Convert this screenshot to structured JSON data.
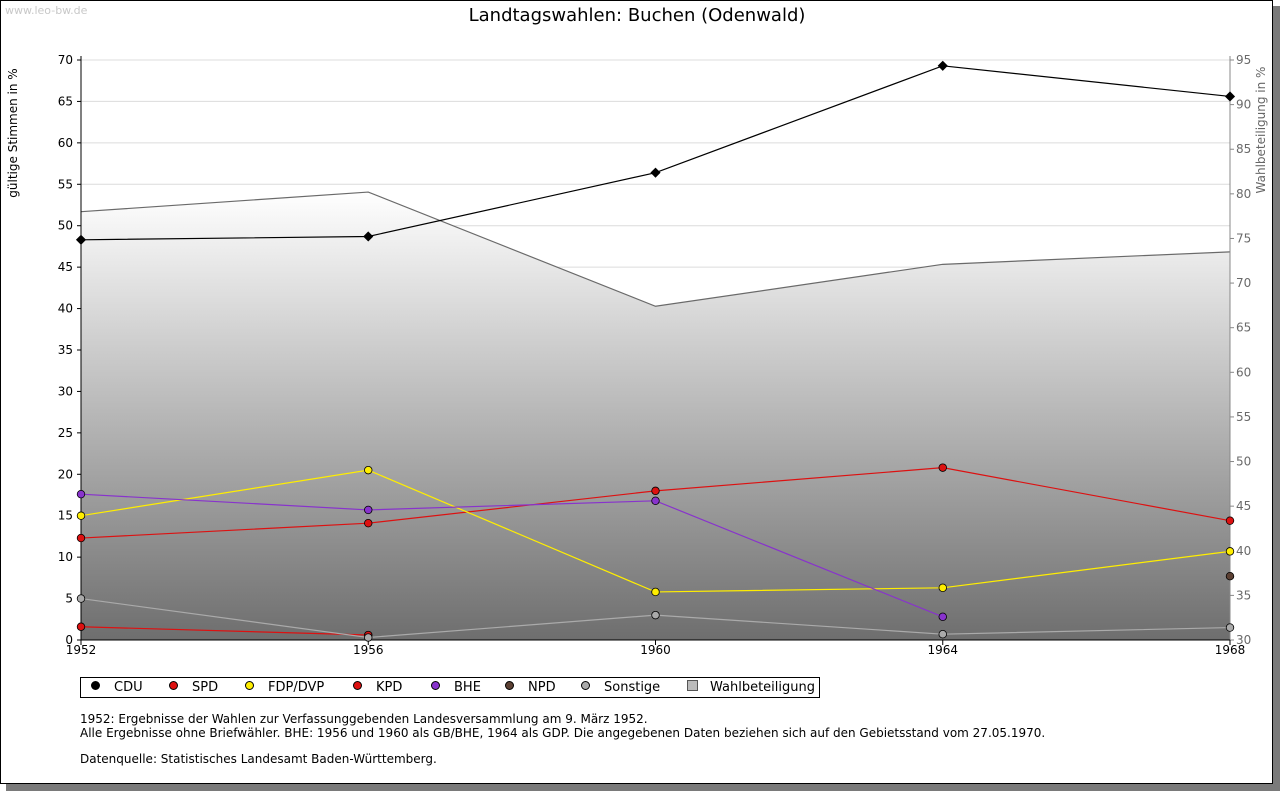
{
  "watermark": "www.leo-bw.de",
  "chart_data": {
    "type": "line",
    "title": "Landtagswahlen: Buchen (Odenwald)",
    "ylabel": "gültige Stimmen in %",
    "y2label": "Wahlbeteiligung in %",
    "categories": [
      "1952",
      "1956",
      "1960",
      "1964",
      "1968"
    ],
    "ylim": [
      0,
      70
    ],
    "y2lim": [
      30,
      95
    ],
    "yticks": [
      0,
      5,
      10,
      15,
      20,
      25,
      30,
      35,
      40,
      45,
      50,
      55,
      60,
      65,
      70
    ],
    "y2ticks": [
      30,
      35,
      40,
      45,
      50,
      55,
      60,
      65,
      70,
      75,
      80,
      85,
      90,
      95
    ],
    "turnout": {
      "name": "Wahlbeteiligung",
      "values": [
        78.0,
        80.2,
        67.4,
        72.1,
        73.5
      ]
    },
    "series": [
      {
        "name": "CDU",
        "color": "#000000",
        "values": [
          48.3,
          48.7,
          56.4,
          69.3,
          65.6
        ]
      },
      {
        "name": "SPD",
        "color": "#dd1111",
        "values": [
          12.3,
          14.1,
          18.0,
          20.8,
          14.4
        ]
      },
      {
        "name": "FDP/DVP",
        "color": "#ffee00",
        "values": [
          15.0,
          20.5,
          5.8,
          6.3,
          10.7
        ]
      },
      {
        "name": "KPD",
        "color": "#dd1111",
        "values": [
          1.6,
          0.6,
          null,
          null,
          null
        ]
      },
      {
        "name": "BHE",
        "color": "#8833cc",
        "values": [
          17.6,
          15.7,
          16.8,
          2.8,
          null
        ]
      },
      {
        "name": "NPD",
        "color": "#5c4033",
        "values": [
          null,
          null,
          null,
          null,
          7.7
        ]
      },
      {
        "name": "Sonstige",
        "color": "#aaaaaa",
        "values": [
          5.0,
          0.3,
          3.0,
          0.7,
          1.5
        ]
      }
    ]
  },
  "legend": {
    "items": [
      "CDU",
      "SPD",
      "FDP/DVP",
      "KPD",
      "BHE",
      "NPD",
      "Sonstige"
    ],
    "turnout_label": "Wahlbeteiligung"
  },
  "notes": {
    "line1": "1952: Ergebnisse der Wahlen zur Verfassunggebenden Landesversammlung am 9. März 1952.",
    "line2": "Alle Ergebnisse ohne Briefwähler. BHE: 1956 und 1960 als GB/BHE, 1964 als GDP. Die angegebenen Daten beziehen sich auf den Gebietsstand vom 27.05.1970.",
    "source": "Datenquelle: Statistisches Landesamt Baden-Württemberg."
  }
}
